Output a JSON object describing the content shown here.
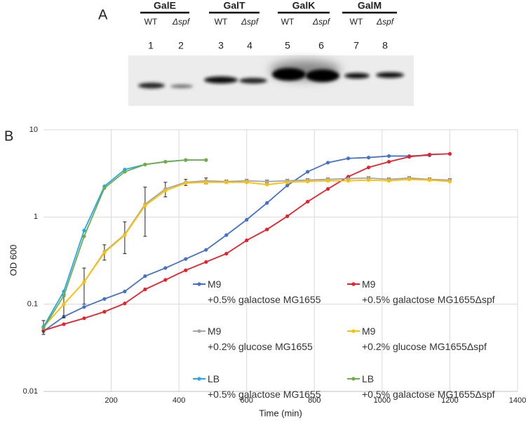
{
  "panel_a": {
    "label": "A",
    "groups": [
      {
        "name": "GalE",
        "lanes": [
          {
            "genotype": "WT",
            "number": 1
          },
          {
            "genotype": "Δspf",
            "number": 2
          }
        ]
      },
      {
        "name": "GalT",
        "lanes": [
          {
            "genotype": "WT",
            "number": 3
          },
          {
            "genotype": "Δspf",
            "number": 4
          }
        ]
      },
      {
        "name": "GalK",
        "lanes": [
          {
            "genotype": "WT",
            "number": 5
          },
          {
            "genotype": "Δspf",
            "number": 6
          }
        ]
      },
      {
        "name": "GalM",
        "lanes": [
          {
            "genotype": "WT",
            "number": 7
          },
          {
            "genotype": "Δspf",
            "number": 8
          }
        ]
      }
    ]
  },
  "chart_data": {
    "type": "line",
    "panel_label": "B",
    "x_label": "Time (min)",
    "y_label": "OD 600",
    "log_y": true,
    "grid": true,
    "xlim": [
      0,
      1400
    ],
    "xticks": [
      200,
      400,
      600,
      800,
      1000,
      1200,
      1400
    ],
    "ylim": [
      0.01,
      10
    ],
    "yticks": [
      0.01,
      0.1,
      1,
      10
    ],
    "x": [
      0,
      60,
      120,
      180,
      240,
      300,
      360,
      420,
      480,
      540,
      600,
      660,
      720,
      780,
      840,
      900,
      960,
      1020,
      1080,
      1140,
      1200
    ],
    "series": [
      {
        "name": "M9\n+0.5% galactose MG1655",
        "color": "#4472c4",
        "values": [
          0.049,
          0.072,
          0.093,
          0.115,
          0.14,
          0.21,
          0.26,
          0.33,
          0.42,
          0.62,
          0.93,
          1.45,
          2.3,
          3.3,
          4.2,
          4.7,
          4.8,
          5.0,
          5.0,
          5.1,
          null
        ]
      },
      {
        "name": "M9\n+0.5% galactose MG1655Δspf",
        "color": "#e8202a",
        "values": [
          0.05,
          0.059,
          0.069,
          0.082,
          0.102,
          0.148,
          0.19,
          0.245,
          0.305,
          0.38,
          0.54,
          0.72,
          1.02,
          1.5,
          2.1,
          2.9,
          3.7,
          4.3,
          4.9,
          5.2,
          5.3
        ]
      },
      {
        "name": "M9\n+0.2% glucose MG1655",
        "color": "#a5a5a5",
        "values": [
          0.055,
          0.1,
          0.18,
          0.4,
          0.63,
          1.4,
          2.1,
          2.5,
          2.6,
          2.55,
          2.6,
          2.55,
          2.6,
          2.65,
          2.7,
          2.75,
          2.8,
          2.7,
          2.8,
          2.7,
          2.65
        ],
        "errors": [
          0.01,
          0.03,
          0.08,
          0.08,
          0.25,
          0.8,
          0.4,
          0.2,
          0.2,
          0.1,
          0.1,
          0.1,
          0.1,
          0.1,
          0.1,
          0.1,
          0.1,
          0.1,
          0.1,
          0.1,
          0.1
        ]
      },
      {
        "name": "M9\n+0.2% glucose MG1655Δspf",
        "color": "#ffc000",
        "values": [
          0.055,
          0.1,
          0.18,
          0.39,
          0.62,
          1.35,
          2.0,
          2.45,
          2.5,
          2.5,
          2.5,
          2.35,
          2.5,
          2.55,
          2.6,
          2.6,
          2.65,
          2.6,
          2.7,
          2.65,
          2.55
        ]
      },
      {
        "name": "LB\n+0.5% galactose MG1655",
        "color": "#22a7f0",
        "values": [
          0.055,
          0.14,
          0.7,
          2.25,
          3.5,
          4.0,
          4.3,
          4.5,
          4.5,
          null,
          null,
          null,
          null,
          null,
          null,
          null,
          null,
          null,
          null,
          null,
          null
        ]
      },
      {
        "name": "LB\n+0.5% galactose MG1655Δspf",
        "color": "#70ad47",
        "values": [
          0.053,
          0.125,
          0.6,
          2.15,
          3.3,
          4.0,
          4.3,
          4.5,
          4.5,
          null,
          null,
          null,
          null,
          null,
          null,
          null,
          null,
          null,
          null,
          null,
          null
        ]
      }
    ]
  }
}
